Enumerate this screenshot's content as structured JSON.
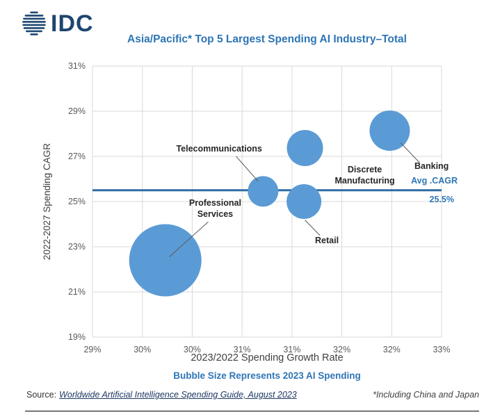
{
  "logo": {
    "text": "IDC"
  },
  "chart_data": {
    "type": "scatter",
    "title": "Asia/Pacific* Top 5 Largest Spending AI Industry–Total",
    "xlabel": "2023/2022 Spending Growth Rate",
    "ylabel": "2022-2027 Spending CAGR",
    "xlim": [
      29,
      32.5
    ],
    "ylim": [
      19,
      31
    ],
    "grid": true,
    "legend": "none",
    "bubble_color": "#5b9bd5",
    "x_ticks": [
      {
        "value": 29,
        "label": "29%"
      },
      {
        "value": 29.5,
        "label": "30%"
      },
      {
        "value": 30,
        "label": "30%"
      },
      {
        "value": 30.5,
        "label": "31%"
      },
      {
        "value": 31,
        "label": "31%"
      },
      {
        "value": 31.5,
        "label": "32%"
      },
      {
        "value": 32,
        "label": "32%"
      },
      {
        "value": 32.5,
        "label": "33%"
      }
    ],
    "y_ticks": [
      {
        "value": 19,
        "label": "19%"
      },
      {
        "value": 21,
        "label": "21%"
      },
      {
        "value": 23,
        "label": "23%"
      },
      {
        "value": 25,
        "label": "25%"
      },
      {
        "value": 27,
        "label": "27%"
      },
      {
        "value": 29,
        "label": "29%"
      },
      {
        "value": 31,
        "label": "31%"
      }
    ],
    "avg_line": {
      "value": 25.5,
      "label": "Avg .CAGR",
      "value_label": "25.5%",
      "color": "#2e6da4"
    },
    "bubbles": [
      {
        "name": "Professional Services",
        "x": 29.73,
        "y": 22.4,
        "r": 52,
        "label_lines": [
          "Professional",
          "Services"
        ],
        "label_at": [
          30.23,
          24.82
        ],
        "leader": [
          [
            30.16,
            24.1
          ],
          [
            29.77,
            22.55
          ]
        ]
      },
      {
        "name": "Telecommunications",
        "x": 30.71,
        "y": 25.45,
        "r": 22,
        "label_lines": [
          "Telecommunications"
        ],
        "label_at": [
          30.27,
          27.22
        ],
        "leader": [
          [
            30.44,
            27.0
          ],
          [
            30.66,
            25.9
          ]
        ]
      },
      {
        "name": "Retail",
        "x": 31.12,
        "y": 25.0,
        "r": 25,
        "label_lines": [
          "Retail"
        ],
        "label_at": [
          31.35,
          23.15
        ],
        "leader": [
          [
            31.13,
            24.18
          ],
          [
            31.28,
            23.5
          ]
        ]
      },
      {
        "name": "Discrete Manufacturing",
        "x": 31.13,
        "y": 27.37,
        "r": 26,
        "label_lines": [
          "Discrete",
          "Manufacturing"
        ],
        "label_at": [
          31.73,
          26.3
        ],
        "leader": null
      },
      {
        "name": "Banking",
        "x": 31.98,
        "y": 28.14,
        "r": 29,
        "label_lines": [
          "Banking"
        ],
        "label_at": [
          32.4,
          26.45
        ],
        "leader": [
          [
            32.28,
            26.72
          ],
          [
            32.09,
            27.6
          ]
        ]
      }
    ],
    "series_note": "Bubble Size Represents 2023 AI Spending"
  },
  "footer": {
    "source_prefix": "Source:",
    "source_link": "Worldwide Artificial Intelligence Spending Guide, August 2023",
    "note": "*Including China and Japan"
  }
}
